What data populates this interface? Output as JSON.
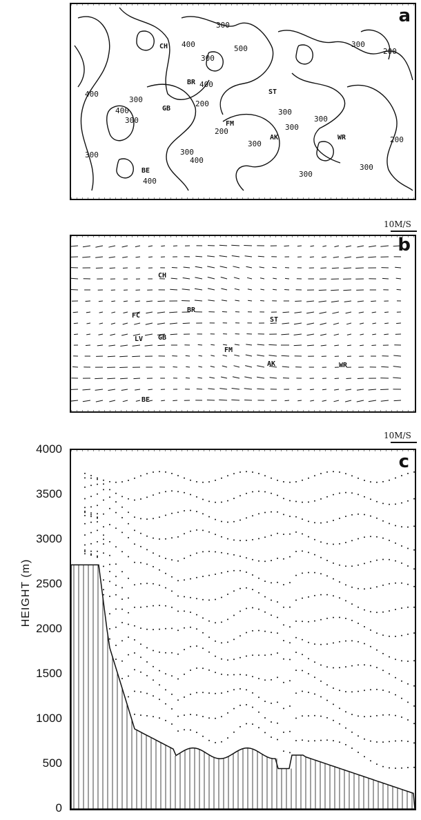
{
  "panel_a": {
    "label": "a",
    "contour_labels": [
      "300",
      "400",
      "500",
      "300",
      "200",
      "300",
      "200",
      "300",
      "300",
      "300",
      "400",
      "400",
      "300",
      "200",
      "300",
      "400",
      "300",
      "300",
      "300",
      "400",
      "300",
      "200",
      "400",
      "300"
    ],
    "sites": [
      "CH",
      "BR",
      "GB",
      "FM",
      "ST",
      "AK",
      "WR",
      "BE"
    ]
  },
  "panel_b": {
    "label": "b",
    "scale_label": "10M/S",
    "sites": [
      "CH",
      "FC",
      "BR",
      "ST",
      "LV",
      "GB",
      "FM",
      "AK",
      "WR",
      "BE"
    ]
  },
  "panel_c": {
    "label": "c",
    "scale_label": "10M/S",
    "ylabel": "HEIGHT (m)",
    "yticks": [
      "4000",
      "3500",
      "3000",
      "2500",
      "2000",
      "1500",
      "1000",
      "500",
      "0"
    ]
  },
  "colors": {
    "ink": "#111111",
    "paper": "#ffffff"
  }
}
